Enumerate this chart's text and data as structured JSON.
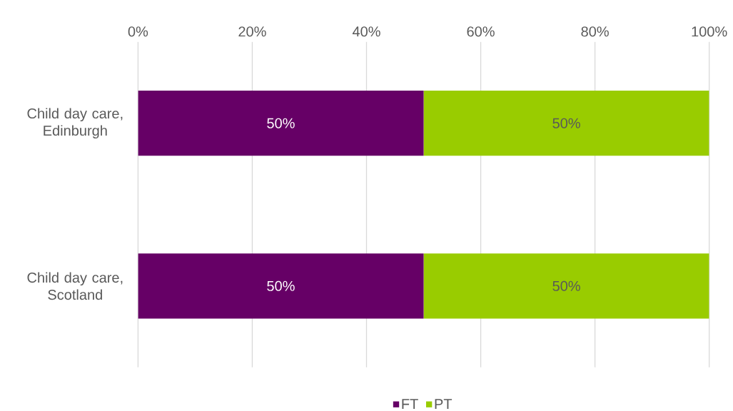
{
  "chart_data": {
    "type": "bar",
    "orientation": "horizontal",
    "stacked": true,
    "categories": [
      "Child day care, Edinburgh",
      "Child day care, Scotland"
    ],
    "series": [
      {
        "name": "FT",
        "color": "#660066",
        "values": [
          50,
          50
        ],
        "value_labels": [
          "50%",
          "50%"
        ]
      },
      {
        "name": "PT",
        "color": "#99cc00",
        "values": [
          50,
          50
        ],
        "value_labels": [
          "50%",
          "50%"
        ]
      }
    ],
    "xlim": [
      0,
      100
    ],
    "xticks": [
      {
        "value": 0,
        "label": "0%"
      },
      {
        "value": 20,
        "label": "20%"
      },
      {
        "value": 40,
        "label": "40%"
      },
      {
        "value": 60,
        "label": "60%"
      },
      {
        "value": 80,
        "label": "80%"
      },
      {
        "value": 100,
        "label": "100%"
      }
    ],
    "grid": "x",
    "legend": "bottom"
  }
}
